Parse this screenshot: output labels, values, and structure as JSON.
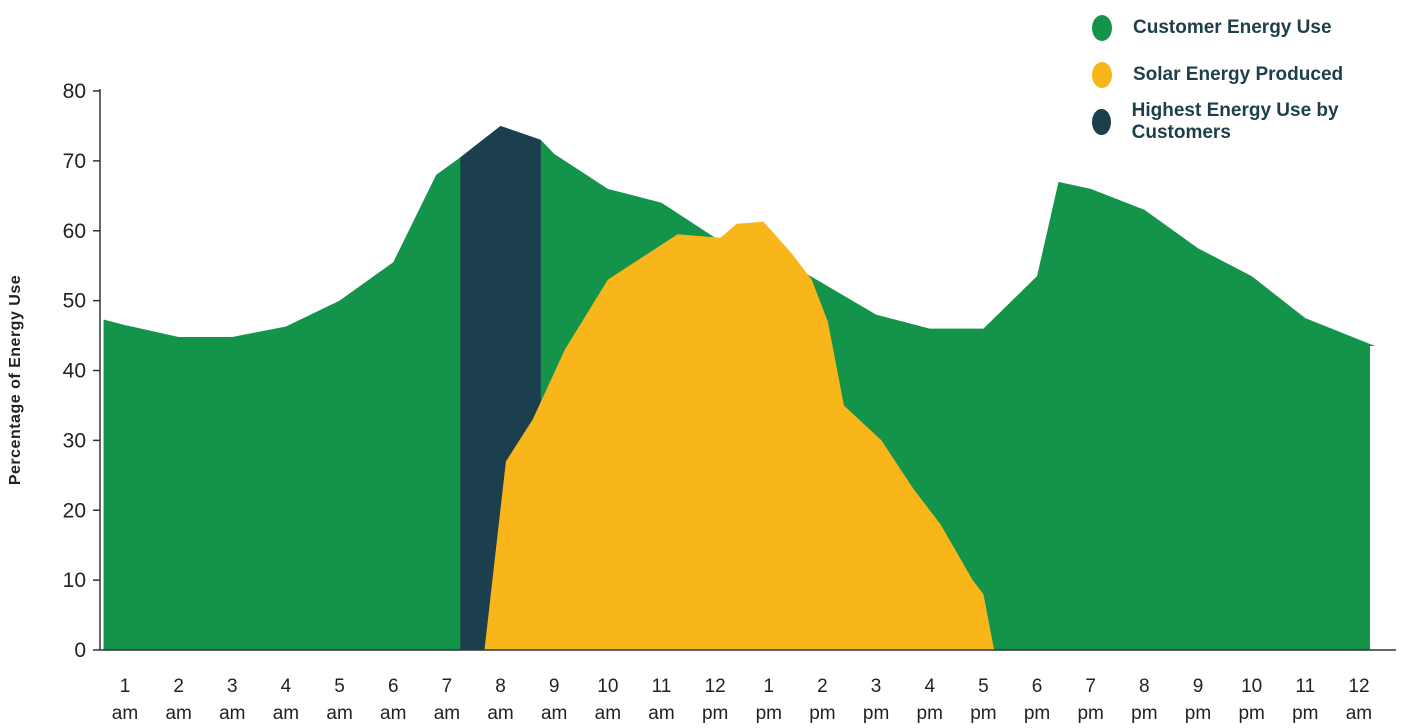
{
  "chart_data": {
    "type": "area",
    "ylabel": "Percentage of Energy Use",
    "xlabel": "",
    "ylim": [
      0,
      80
    ],
    "y_ticks": [
      0,
      10,
      20,
      30,
      40,
      50,
      60,
      70,
      80
    ],
    "x_ticks": [
      {
        "hour": "1",
        "period": "am"
      },
      {
        "hour": "2",
        "period": "am"
      },
      {
        "hour": "3",
        "period": "am"
      },
      {
        "hour": "4",
        "period": "am"
      },
      {
        "hour": "5",
        "period": "am"
      },
      {
        "hour": "6",
        "period": "am"
      },
      {
        "hour": "7",
        "period": "am"
      },
      {
        "hour": "8",
        "period": "am"
      },
      {
        "hour": "9",
        "period": "am"
      },
      {
        "hour": "10",
        "period": "am"
      },
      {
        "hour": "11",
        "period": "am"
      },
      {
        "hour": "12",
        "period": "pm"
      },
      {
        "hour": "1",
        "period": "pm"
      },
      {
        "hour": "2",
        "period": "pm"
      },
      {
        "hour": "3",
        "period": "pm"
      },
      {
        "hour": "4",
        "period": "pm"
      },
      {
        "hour": "5",
        "period": "pm"
      },
      {
        "hour": "6",
        "period": "pm"
      },
      {
        "hour": "7",
        "period": "pm"
      },
      {
        "hour": "8",
        "period": "pm"
      },
      {
        "hour": "9",
        "period": "pm"
      },
      {
        "hour": "10",
        "period": "pm"
      },
      {
        "hour": "11",
        "period": "pm"
      },
      {
        "hour": "12",
        "period": "am"
      }
    ],
    "x_range": [
      0.6,
      24.3
    ],
    "grid": false,
    "legend_position": "top-right",
    "series": [
      {
        "name": "Customer Energy Use",
        "color": "#13944a",
        "points": [
          [
            0.6,
            47.3
          ],
          [
            1.0,
            46.5
          ],
          [
            2.0,
            44.8
          ],
          [
            3.0,
            44.8
          ],
          [
            4.0,
            46.3
          ],
          [
            5.0,
            50.0
          ],
          [
            6.0,
            55.5
          ],
          [
            6.8,
            68.0
          ],
          [
            7.25,
            70.5
          ],
          [
            8.0,
            75.0
          ],
          [
            8.75,
            73.0
          ],
          [
            9.0,
            71.0
          ],
          [
            10.0,
            66.0
          ],
          [
            11.0,
            64.0
          ],
          [
            12.0,
            59.0
          ],
          [
            13.0,
            57.0
          ],
          [
            14.0,
            52.5
          ],
          [
            15.0,
            48.0
          ],
          [
            16.0,
            46.0
          ],
          [
            17.0,
            46.0
          ],
          [
            18.0,
            53.5
          ],
          [
            18.4,
            67.0
          ],
          [
            19.0,
            66.0
          ],
          [
            20.0,
            63.0
          ],
          [
            21.0,
            57.5
          ],
          [
            22.0,
            53.5
          ],
          [
            23.0,
            47.5
          ],
          [
            24.3,
            43.5
          ]
        ]
      },
      {
        "name": "Solar Energy Produced",
        "color": "#f9b61a",
        "points": [
          [
            7.7,
            0.0
          ],
          [
            8.1,
            27.0
          ],
          [
            8.6,
            33.0
          ],
          [
            9.2,
            43.0
          ],
          [
            10.0,
            53.0
          ],
          [
            11.3,
            59.5
          ],
          [
            12.1,
            59.0
          ],
          [
            12.4,
            61.0
          ],
          [
            12.9,
            61.3
          ],
          [
            13.4,
            57.0
          ],
          [
            13.8,
            53.0
          ],
          [
            14.1,
            47.0
          ],
          [
            14.4,
            35.0
          ],
          [
            15.1,
            30.0
          ],
          [
            15.7,
            23.0
          ],
          [
            16.2,
            18.0
          ],
          [
            16.8,
            10.0
          ],
          [
            17.0,
            8.0
          ],
          [
            17.2,
            0.0
          ]
        ]
      },
      {
        "name": "Highest Energy Use by Customers",
        "color": "#1b3f4c",
        "range": [
          7.25,
          8.75
        ]
      }
    ]
  }
}
